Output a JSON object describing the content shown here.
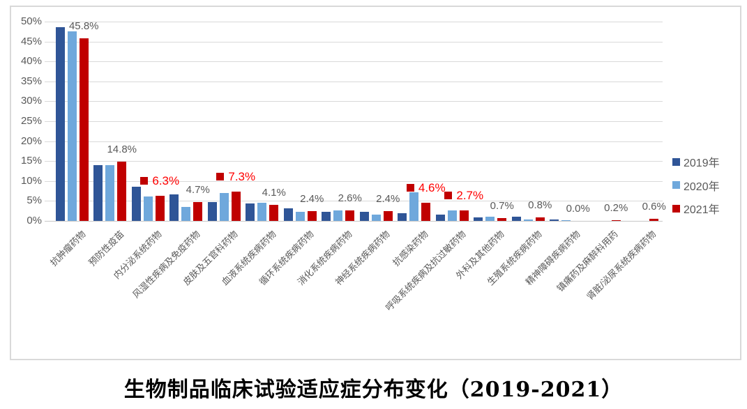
{
  "colors": {
    "series_2019": "#2F5597",
    "series_2020": "#6FA8DC",
    "series_2021": "#C00000",
    "gridline": "#D9D9D9",
    "axis_text": "#595959",
    "value_label_gray": "#595959",
    "value_label_red": "#FF0000",
    "chart_border": "#D9D9D9"
  },
  "chart_data": {
    "type": "bar",
    "title": "生物制品临床试验适应症分布变化（2019-2021）",
    "categories": [
      "抗肿瘤药物",
      "预防性疫苗",
      "内分泌系统药物",
      "风湿性疾病及免疫药物",
      "皮肤及五官科药物",
      "血液系统疾病药物",
      "循环系统疾病药物",
      "消化系统疾病药物",
      "神经系统疾病药物",
      "抗感染药物",
      "呼吸系统疾病及抗过敏药物",
      "外科及其他药物",
      "生殖系统疾病药物",
      "精神障碍疾病药物",
      "镇痛药及麻醉科用药",
      "肾脏/泌尿系统疾病药物"
    ],
    "series": [
      {
        "name": "2019年",
        "color": "#2F5597",
        "values": [
          48.6,
          13.9,
          8.6,
          6.6,
          4.8,
          4.3,
          3.1,
          2.3,
          2.2,
          2.0,
          1.6,
          0.9,
          1.0,
          0.4,
          0.0,
          0.0
        ]
      },
      {
        "name": "2020年",
        "color": "#6FA8DC",
        "values": [
          47.5,
          13.9,
          6.1,
          3.5,
          7.0,
          4.5,
          2.3,
          2.6,
          1.6,
          7.2,
          2.6,
          1.1,
          0.4,
          0.1,
          0.0,
          0.0
        ]
      },
      {
        "name": "2021年",
        "color": "#C00000",
        "values": [
          45.8,
          14.8,
          6.3,
          4.7,
          7.3,
          4.1,
          2.4,
          2.6,
          2.4,
          4.6,
          2.7,
          0.7,
          0.8,
          0.0,
          0.2,
          0.6
        ]
      }
    ],
    "value_labels": [
      {
        "text": "45.8%",
        "style": "gray",
        "key": false
      },
      {
        "text": "14.8%",
        "style": "gray",
        "key": false
      },
      {
        "text": "6.3%",
        "style": "red",
        "key": true
      },
      {
        "text": "4.7%",
        "style": "gray",
        "key": false
      },
      {
        "text": "7.3%",
        "style": "red",
        "key": true
      },
      {
        "text": "4.1%",
        "style": "gray",
        "key": false
      },
      {
        "text": "2.4%",
        "style": "gray",
        "key": false
      },
      {
        "text": "2.6%",
        "style": "gray",
        "key": false
      },
      {
        "text": "2.4%",
        "style": "gray",
        "key": false
      },
      {
        "text": "4.6%",
        "style": "red",
        "key": true
      },
      {
        "text": "2.7%",
        "style": "red",
        "key": true
      },
      {
        "text": "0.7%",
        "style": "gray",
        "key": false
      },
      {
        "text": "0.8%",
        "style": "gray",
        "key": false
      },
      {
        "text": "0.0%",
        "style": "gray",
        "key": false
      },
      {
        "text": "0.2%",
        "style": "gray",
        "key": false
      },
      {
        "text": "0.6%",
        "style": "gray",
        "key": false
      }
    ],
    "ylim": [
      0,
      50
    ],
    "ytick_labels": [
      "0%",
      "5%",
      "10%",
      "15%",
      "20%",
      "25%",
      "30%",
      "35%",
      "40%",
      "45%",
      "50%"
    ],
    "grid": true,
    "legend_position": "right",
    "legend_entries": [
      "2019年",
      "2020年",
      "2021年"
    ]
  }
}
